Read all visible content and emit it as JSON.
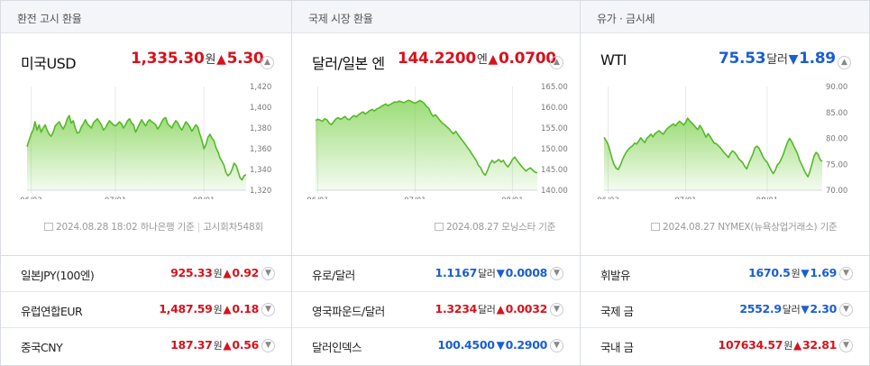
{
  "sections": [
    {
      "header": "환전 고시 환율",
      "main": {
        "name": "미국USD",
        "value": "1,335.30",
        "unit": "원",
        "change": "5.30",
        "direction": "up"
      },
      "chart": {
        "y_ticks": [
          "1,420",
          "1,400",
          "1,380",
          "1,360",
          "1,340",
          "1,320"
        ],
        "ylim": [
          1320,
          1420
        ],
        "x_ticks": [
          "06/03",
          "07/01",
          "08/01"
        ],
        "x_tick_index": [
          2,
          44,
          88
        ],
        "values": [
          1362,
          1368,
          1374,
          1378,
          1386,
          1378,
          1383,
          1376,
          1380,
          1383,
          1378,
          1374,
          1372,
          1376,
          1382,
          1384,
          1386,
          1382,
          1379,
          1383,
          1389,
          1392,
          1385,
          1387,
          1380,
          1375,
          1376,
          1381,
          1384,
          1388,
          1384,
          1382,
          1380,
          1385,
          1387,
          1389,
          1386,
          1383,
          1378,
          1380,
          1384,
          1387,
          1385,
          1383,
          1382,
          1384,
          1386,
          1384,
          1380,
          1383,
          1387,
          1389,
          1385,
          1383,
          1376,
          1380,
          1384,
          1388,
          1385,
          1382,
          1386,
          1388,
          1386,
          1385,
          1383,
          1379,
          1382,
          1386,
          1389,
          1390,
          1384,
          1382,
          1380,
          1384,
          1387,
          1385,
          1381,
          1378,
          1382,
          1386,
          1384,
          1381,
          1377,
          1380,
          1383,
          1381,
          1374,
          1368,
          1360,
          1364,
          1371,
          1374,
          1370,
          1368,
          1361,
          1357,
          1351,
          1348,
          1344,
          1337,
          1334,
          1336,
          1340,
          1346,
          1344,
          1338,
          1332,
          1330,
          1334,
          1335
        ],
        "color": "#7bd04a"
      },
      "note": {
        "date": "2024.08.28 18:02",
        "source": "하나은행",
        "suffix": "기준",
        "extra": "고시회차548회"
      },
      "rows": [
        {
          "name": "일본JPY(100엔)",
          "value": "925.33",
          "unit": "원",
          "change": "0.92",
          "direction": "up"
        },
        {
          "name": "유럽연합EUR",
          "value": "1,487.59",
          "unit": "원",
          "change": "0.18",
          "direction": "up"
        },
        {
          "name": "중국CNY",
          "value": "187.37",
          "unit": "원",
          "change": "0.56",
          "direction": "up"
        }
      ]
    },
    {
      "header": "국제 시장 환율",
      "main": {
        "name": "달러/일본 엔",
        "value": "144.2200",
        "unit": "엔",
        "change": "0.0700",
        "direction": "up"
      },
      "chart": {
        "y_ticks": [
          "165.00",
          "160.00",
          "155.00",
          "150.00",
          "145.00",
          "140.00"
        ],
        "ylim": [
          140,
          165
        ],
        "x_ticks": [
          "06/01",
          "07/01",
          "08/01"
        ],
        "x_tick_index": [
          1,
          44,
          87
        ],
        "values": [
          156.8,
          157.1,
          156.9,
          156.6,
          157.2,
          157.0,
          156.2,
          155.8,
          156.5,
          157.2,
          157.5,
          157.1,
          157.4,
          157.8,
          157.2,
          157.0,
          157.6,
          158.0,
          157.7,
          158.2,
          158.6,
          158.9,
          158.4,
          158.8,
          159.2,
          159.5,
          159.1,
          159.6,
          159.8,
          160.2,
          160.5,
          160.8,
          160.4,
          160.7,
          161.0,
          161.3,
          161.2,
          161.5,
          161.3,
          161.1,
          161.4,
          161.7,
          161.5,
          161.2,
          161.0,
          161.3,
          161.6,
          161.4,
          161.0,
          160.2,
          159.8,
          158.6,
          157.8,
          158.2,
          157.5,
          156.8,
          156.2,
          155.8,
          155.3,
          154.8,
          154.1,
          153.6,
          154.2,
          153.4,
          152.6,
          151.9,
          151.2,
          150.4,
          149.7,
          148.8,
          148.0,
          147.2,
          146.0,
          145.4,
          144.2,
          143.6,
          144.8,
          146.3,
          147.2,
          146.6,
          147.0,
          147.4,
          146.8,
          147.2,
          146.2,
          145.6,
          146.4,
          147.4,
          148.0,
          147.2,
          146.5,
          145.8,
          145.2,
          144.6,
          145.1,
          145.4,
          144.8,
          144.3,
          144.22
        ],
        "color": "#7bd04a"
      },
      "note": {
        "date": "2024.08.27",
        "source": "모닝스타",
        "suffix": "기준",
        "extra": ""
      },
      "rows": [
        {
          "name": "유로/달러",
          "value": "1.1167",
          "unit": "달러",
          "change": "0.0008",
          "direction": "down"
        },
        {
          "name": "영국파운드/달러",
          "value": "1.3234",
          "unit": "달러",
          "change": "0.0032",
          "direction": "up"
        },
        {
          "name": "달러인덱스",
          "value": "100.4500",
          "unit": "",
          "change": "0.2900",
          "direction": "down"
        }
      ]
    },
    {
      "header": "유가 · 금시세",
      "main": {
        "name": "WTI",
        "value": "75.53",
        "unit": "달러",
        "change": "1.89",
        "direction": "down"
      },
      "chart": {
        "y_ticks": [
          "90.00",
          "85.00",
          "80.00",
          "75.00",
          "70.00"
        ],
        "ylim": [
          70,
          90
        ],
        "x_ticks": [
          "06/03",
          "07/01",
          "08/01"
        ],
        "x_tick_index": [
          2,
          40,
          80
        ],
        "values": [
          80.2,
          79.6,
          78.8,
          77.5,
          76.0,
          74.9,
          74.2,
          74.0,
          74.8,
          75.9,
          76.7,
          77.4,
          77.9,
          78.3,
          78.6,
          79.1,
          78.9,
          79.5,
          80.1,
          79.6,
          79.2,
          80.0,
          80.4,
          80.8,
          80.3,
          80.9,
          81.2,
          81.5,
          81.1,
          80.8,
          81.4,
          81.9,
          82.2,
          82.5,
          82.8,
          82.4,
          82.9,
          83.3,
          83.0,
          82.6,
          83.1,
          83.9,
          83.4,
          83.0,
          82.6,
          82.1,
          81.7,
          82.5,
          81.9,
          81.1,
          80.2,
          80.9,
          80.4,
          79.7,
          79.1,
          79.0,
          78.6,
          78.2,
          77.7,
          77.2,
          76.8,
          76.3,
          77.1,
          77.6,
          77.3,
          76.8,
          76.1,
          75.7,
          75.3,
          74.6,
          74.1,
          75.2,
          76.1,
          77.0,
          78.2,
          78.5,
          78.1,
          77.3,
          76.4,
          75.8,
          75.4,
          74.6,
          73.8,
          73.2,
          73.9,
          74.9,
          75.3,
          76.1,
          77.0,
          78.2,
          79.3,
          80.0,
          79.4,
          78.6,
          77.8,
          76.9,
          75.7,
          74.9,
          74.0,
          73.2,
          72.6,
          73.7,
          75.1,
          76.6,
          77.3,
          76.9,
          75.9,
          75.53
        ],
        "color": "#7bd04a"
      },
      "note": {
        "date": "2024.08.27",
        "source": "NYMEX(뉴욕상업거래소)",
        "suffix": "기준",
        "extra": ""
      },
      "rows": [
        {
          "name": "휘발유",
          "value": "1670.5",
          "unit": "원",
          "change": "1.69",
          "direction": "down"
        },
        {
          "name": "국제 금",
          "value": "2552.9",
          "unit": "달러",
          "change": "2.30",
          "direction": "down"
        },
        {
          "name": "국내 금",
          "value": "107634.57",
          "unit": "원",
          "change": "32.81",
          "direction": "up"
        }
      ]
    }
  ],
  "chart_data": [
    {
      "type": "area",
      "title": "미국USD",
      "ylim": [
        1320,
        1420
      ],
      "x_ticks": [
        "06/03",
        "07/01",
        "08/01"
      ],
      "y_ticks": [
        1420,
        1400,
        1380,
        1360,
        1340,
        1320
      ],
      "series": [
        {
          "values": [
            1362,
            1368,
            1374,
            1378,
            1386,
            1378,
            1383,
            1376,
            1380,
            1383,
            1378,
            1374,
            1372,
            1376,
            1382,
            1384,
            1386,
            1382,
            1379,
            1383,
            1389,
            1392,
            1385,
            1387,
            1380,
            1375,
            1376,
            1381,
            1384,
            1388,
            1384,
            1382,
            1380,
            1385,
            1387,
            1389,
            1386,
            1383,
            1378,
            1380,
            1384,
            1387,
            1385,
            1383,
            1382,
            1384,
            1386,
            1384,
            1380,
            1383,
            1387,
            1389,
            1385,
            1383,
            1376,
            1380,
            1384,
            1388,
            1385,
            1382,
            1386,
            1388,
            1386,
            1385,
            1383,
            1379,
            1382,
            1386,
            1389,
            1390,
            1384,
            1382,
            1380,
            1384,
            1387,
            1385,
            1381,
            1378,
            1382,
            1386,
            1384,
            1381,
            1377,
            1380,
            1383,
            1381,
            1374,
            1368,
            1360,
            1364,
            1371,
            1374,
            1370,
            1368,
            1361,
            1357,
            1351,
            1348,
            1344,
            1337,
            1334,
            1336,
            1340,
            1346,
            1344,
            1338,
            1332,
            1330,
            1334,
            1335
          ]
        }
      ]
    },
    {
      "type": "area",
      "title": "달러/일본 엔",
      "ylim": [
        140,
        165
      ],
      "x_ticks": [
        "06/01",
        "07/01",
        "08/01"
      ],
      "y_ticks": [
        165,
        160,
        155,
        150,
        145,
        140
      ],
      "series": [
        {
          "values": [
            156.8,
            157.1,
            156.9,
            156.6,
            157.2,
            157.0,
            156.2,
            155.8,
            156.5,
            157.2,
            157.5,
            157.1,
            157.4,
            157.8,
            157.2,
            157.0,
            157.6,
            158.0,
            157.7,
            158.2,
            158.6,
            158.9,
            158.4,
            158.8,
            159.2,
            159.5,
            159.1,
            159.6,
            159.8,
            160.2,
            160.5,
            160.8,
            160.4,
            160.7,
            161.0,
            161.3,
            161.2,
            161.5,
            161.3,
            161.1,
            161.4,
            161.7,
            161.5,
            161.2,
            161.0,
            161.3,
            161.6,
            161.4,
            161.0,
            160.2,
            159.8,
            158.6,
            157.8,
            158.2,
            157.5,
            156.8,
            156.2,
            155.8,
            155.3,
            154.8,
            154.1,
            153.6,
            154.2,
            153.4,
            152.6,
            151.9,
            151.2,
            150.4,
            149.7,
            148.8,
            148.0,
            147.2,
            146.0,
            145.4,
            144.2,
            143.6,
            144.8,
            146.3,
            147.2,
            146.6,
            147.0,
            147.4,
            146.8,
            147.2,
            146.2,
            145.6,
            146.4,
            147.4,
            148.0,
            147.2,
            146.5,
            145.8,
            145.2,
            144.6,
            145.1,
            145.4,
            144.8,
            144.3,
            144.22
          ]
        }
      ]
    },
    {
      "type": "area",
      "title": "WTI",
      "ylim": [
        70,
        90
      ],
      "x_ticks": [
        "06/03",
        "07/01",
        "08/01"
      ],
      "y_ticks": [
        90,
        85,
        80,
        75,
        70
      ],
      "series": [
        {
          "values": [
            80.2,
            79.6,
            78.8,
            77.5,
            76.0,
            74.9,
            74.2,
            74.0,
            74.8,
            75.9,
            76.7,
            77.4,
            77.9,
            78.3,
            78.6,
            79.1,
            78.9,
            79.5,
            80.1,
            79.6,
            79.2,
            80.0,
            80.4,
            80.8,
            80.3,
            80.9,
            81.2,
            81.5,
            81.1,
            80.8,
            81.4,
            81.9,
            82.2,
            82.5,
            82.8,
            82.4,
            82.9,
            83.3,
            83.0,
            82.6,
            83.1,
            83.9,
            83.4,
            83.0,
            82.6,
            82.1,
            81.7,
            82.5,
            81.9,
            81.1,
            80.2,
            80.9,
            80.4,
            79.7,
            79.1,
            79.0,
            78.6,
            78.2,
            77.7,
            77.2,
            76.8,
            76.3,
            77.1,
            77.6,
            77.3,
            76.8,
            76.1,
            75.7,
            75.3,
            74.6,
            74.1,
            75.2,
            76.1,
            77.0,
            78.2,
            78.5,
            78.1,
            77.3,
            76.4,
            75.8,
            75.4,
            74.6,
            73.8,
            73.2,
            73.9,
            74.9,
            75.3,
            76.1,
            77.0,
            78.2,
            79.3,
            80.0,
            79.4,
            78.6,
            77.8,
            76.9,
            75.7,
            74.9,
            74.0,
            73.2,
            72.6,
            73.7,
            75.1,
            76.6,
            77.3,
            76.9,
            75.9,
            75.53
          ]
        }
      ]
    }
  ]
}
